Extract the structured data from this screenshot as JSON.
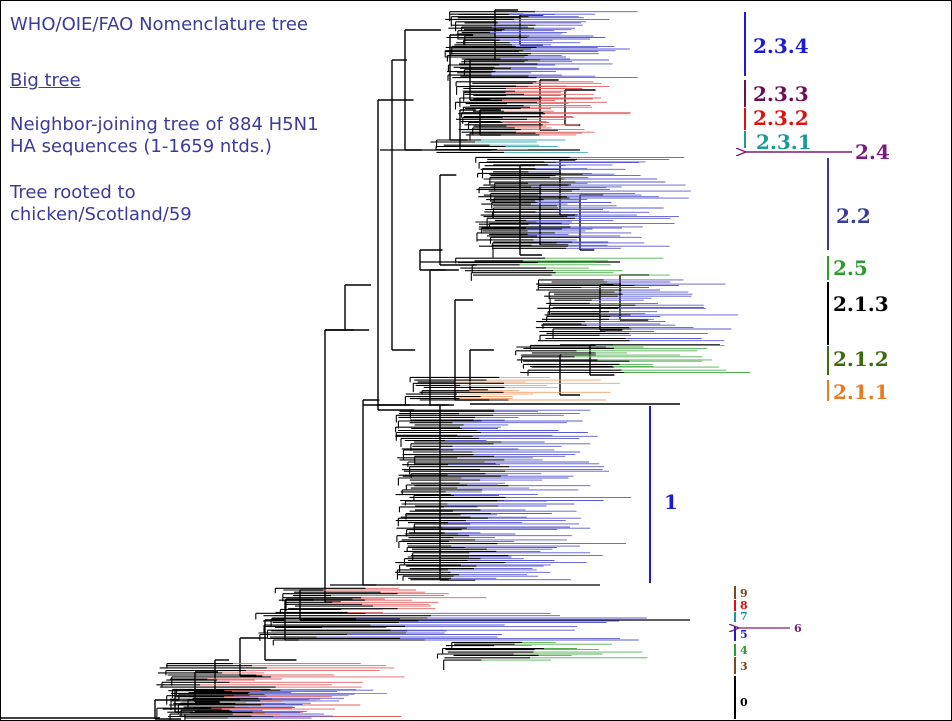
{
  "info": {
    "title": "WHO/OIE/FAO Nomenclature tree",
    "subtitle": "Big tree",
    "description_line1": "Neighbor-joining tree of 884 H5N1",
    "description_line2": "HA sequences (1-1659 ntds.)",
    "root_line1": "Tree rooted to",
    "root_line2": "chicken/Scotland/59"
  },
  "clades": {
    "c234": {
      "label": "2.3.4",
      "color": "#1c1ccf"
    },
    "c233": {
      "label": "2.3.3",
      "color": "#6b0f55"
    },
    "c232": {
      "label": "2.3.2",
      "color": "#e01010"
    },
    "c231": {
      "label": "2.3.1",
      "color": "#1a9a9a"
    },
    "c24": {
      "label": "2.4",
      "color": "#7a1a7a"
    },
    "c22": {
      "label": "2.2",
      "color": "#3b3b9a"
    },
    "c25": {
      "label": "2.5",
      "color": "#2f9a2f"
    },
    "c213": {
      "label": "2.1.3",
      "color": "#000000"
    },
    "c212": {
      "label": "2.1.2",
      "color": "#3d6b10"
    },
    "c211": {
      "label": "2.1.1",
      "color": "#e87a20"
    },
    "c1": {
      "label": "1",
      "color": "#1c1ccf"
    },
    "c9": {
      "label": "9",
      "color": "#7a4a20"
    },
    "c8": {
      "label": "8",
      "color": "#e01010"
    },
    "c7": {
      "label": "7",
      "color": "#1a9a9a"
    },
    "c6": {
      "label": "6",
      "color": "#7a1a7a"
    },
    "c5": {
      "label": "5",
      "color": "#1c1ccf"
    },
    "c4": {
      "label": "4",
      "color": "#2f9a2f"
    },
    "c3": {
      "label": "3",
      "color": "#7a4a20"
    },
    "c0": {
      "label": "0",
      "color": "#000000"
    }
  },
  "colors": {
    "branch": "#000000",
    "leaf_blue": "#5a5ad0",
    "leaf_red": "#e06060",
    "leaf_green": "#50b050",
    "leaf_teal": "#40b0b0",
    "leaf_orange": "#f0a070"
  }
}
